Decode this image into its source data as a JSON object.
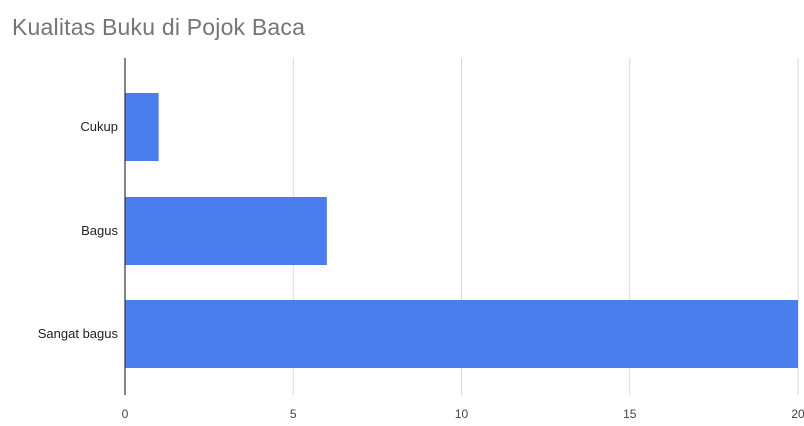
{
  "chart_data": {
    "type": "bar",
    "orientation": "horizontal",
    "title": "Kualitas Buku di Pojok Baca",
    "categories": [
      "Cukup",
      "Bagus",
      "Sangat bagus"
    ],
    "values": [
      1,
      6,
      20
    ],
    "xlim": [
      0,
      20
    ],
    "xticks": [
      "0",
      "5",
      "10",
      "15",
      "20"
    ],
    "xlabel": "",
    "ylabel": "",
    "grid": "vertical",
    "legend": "none",
    "bar_color": "#4a7eee",
    "grid_color": "#d9d9d9",
    "axis_color": "#333333"
  }
}
